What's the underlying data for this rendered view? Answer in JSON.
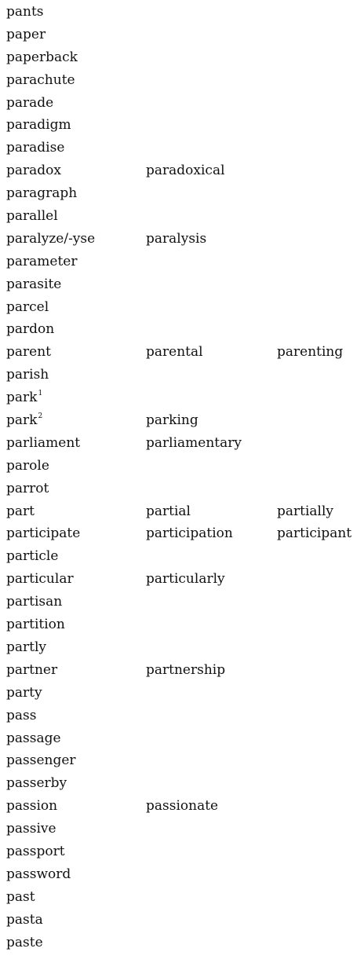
{
  "rows": [
    {
      "c1": "pants"
    },
    {
      "c1": "paper"
    },
    {
      "c1": "paperback"
    },
    {
      "c1": "parachute"
    },
    {
      "c1": "parade"
    },
    {
      "c1": "paradigm"
    },
    {
      "c1": "paradise"
    },
    {
      "c1": "paradox",
      "c2": "paradoxical"
    },
    {
      "c1": "paragraph"
    },
    {
      "c1": "parallel"
    },
    {
      "c1": "paralyze/-yse",
      "c2": "paralysis"
    },
    {
      "c1": "parameter"
    },
    {
      "c1": "parasite"
    },
    {
      "c1": "parcel"
    },
    {
      "c1": "pardon"
    },
    {
      "c1": "parent",
      "c2": "parental",
      "c3": "parenting"
    },
    {
      "c1": "parish"
    },
    {
      "c1": "park",
      "sup": "1"
    },
    {
      "c1": "park",
      "sup": "2",
      "c2": "parking"
    },
    {
      "c1": "parliament",
      "c2": "parliamentary"
    },
    {
      "c1": "parole"
    },
    {
      "c1": "parrot"
    },
    {
      "c1": "part",
      "c2": "partial",
      "c3": "partially"
    },
    {
      "c1": "participate",
      "c2": "participation",
      "c3": "participant"
    },
    {
      "c1": "particle"
    },
    {
      "c1": "particular",
      "c2": "particularly"
    },
    {
      "c1": "partisan"
    },
    {
      "c1": "partition"
    },
    {
      "c1": "partly"
    },
    {
      "c1": "partner",
      "c2": "partnership"
    },
    {
      "c1": "party"
    },
    {
      "c1": "pass"
    },
    {
      "c1": "passage"
    },
    {
      "c1": "passenger"
    },
    {
      "c1": "passerby"
    },
    {
      "c1": "passion",
      "c2": "passionate"
    },
    {
      "c1": "passive"
    },
    {
      "c1": "passport"
    },
    {
      "c1": "password"
    },
    {
      "c1": "past"
    },
    {
      "c1": "pasta"
    },
    {
      "c1": "paste"
    }
  ]
}
